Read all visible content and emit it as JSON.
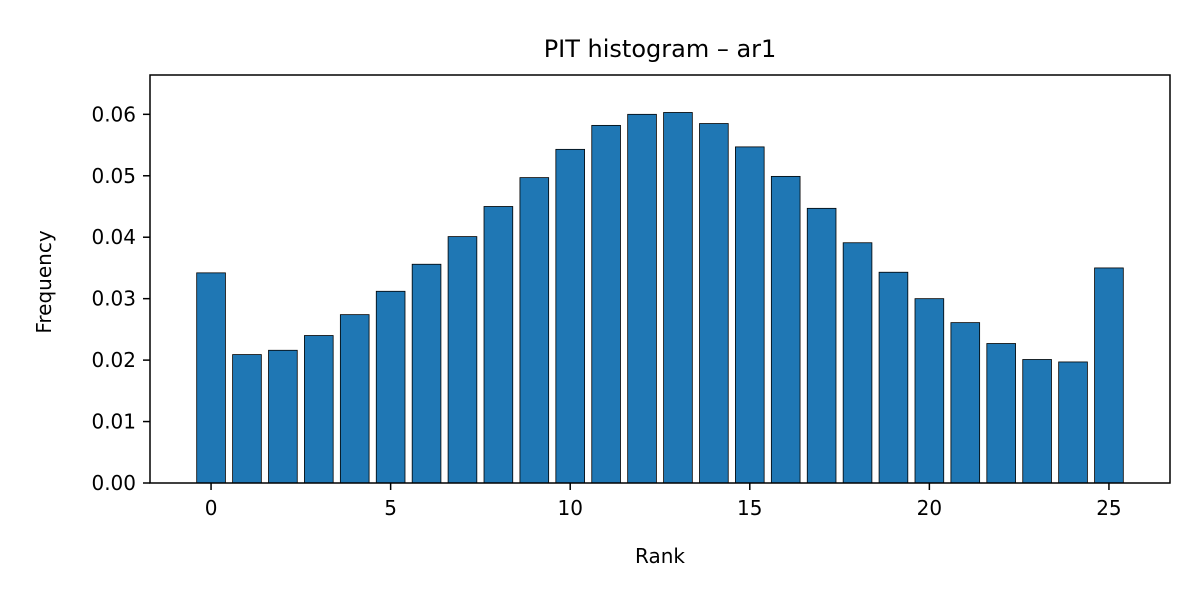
{
  "chart_data": {
    "type": "bar",
    "title": "PIT histogram – ar1",
    "xlabel": "Rank",
    "ylabel": "Frequency",
    "x": [
      0,
      1,
      2,
      3,
      4,
      5,
      6,
      7,
      8,
      9,
      10,
      11,
      12,
      13,
      14,
      15,
      16,
      17,
      18,
      19,
      20,
      21,
      22,
      23,
      24,
      25
    ],
    "values": [
      0.0342,
      0.0209,
      0.0216,
      0.024,
      0.0274,
      0.0312,
      0.0356,
      0.0401,
      0.045,
      0.0497,
      0.0543,
      0.0582,
      0.06,
      0.0603,
      0.0585,
      0.0547,
      0.0499,
      0.0447,
      0.0391,
      0.0343,
      0.03,
      0.0261,
      0.0227,
      0.0201,
      0.0197,
      0.035
    ],
    "xlim": [
      -1.7,
      26.7
    ],
    "ylim": [
      0,
      0.0664
    ],
    "xticks": [
      0,
      5,
      10,
      15,
      20,
      25
    ],
    "yticks": [
      0.0,
      0.01,
      0.02,
      0.03,
      0.04,
      0.05,
      0.06
    ],
    "ytick_labels": [
      "0.00",
      "0.01",
      "0.02",
      "0.03",
      "0.04",
      "0.05",
      "0.06"
    ],
    "bar_color": "#1f77b4",
    "edge_color": "#000000",
    "grid": false,
    "legend": "none"
  }
}
